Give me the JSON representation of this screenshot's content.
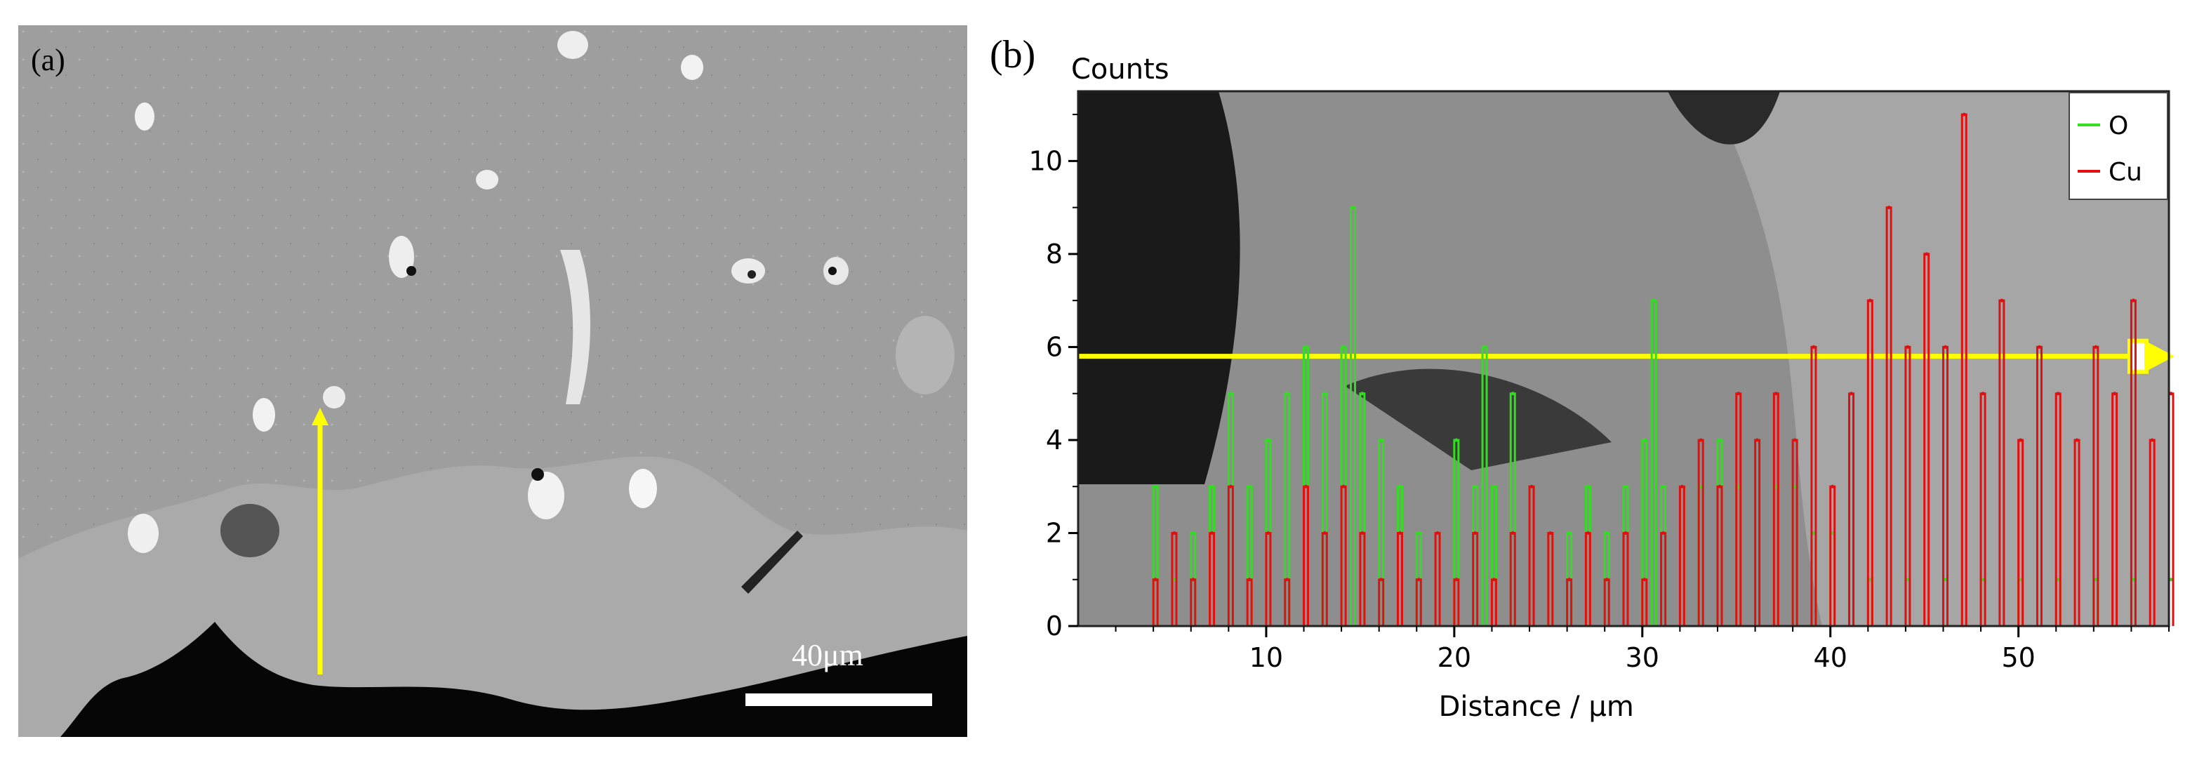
{
  "panel_a": {
    "label": "(a)",
    "scale_bar_label": "40μm",
    "colors": {
      "matrix": "#9e9e9e",
      "oxide_layer": "#a9a9a9",
      "void": "#050505",
      "arrow": "#ffff00",
      "scale_bar": "#ffffff"
    }
  },
  "panel_b": {
    "label": "(b)"
  },
  "chart_data": {
    "type": "line",
    "ylabel": "Counts",
    "xlabel": "Distance / μm",
    "xlim": [
      0,
      58
    ],
    "ylim": [
      0,
      11.5
    ],
    "x_ticks": [
      10,
      20,
      30,
      40,
      50
    ],
    "y_ticks": [
      0,
      2,
      4,
      6,
      8,
      10
    ],
    "legend_position": "top-right",
    "grid": false,
    "series": [
      {
        "name": "O",
        "color": "#33dd22",
        "x": [
          4,
          5,
          6,
          7,
          8,
          9,
          10,
          11,
          12,
          13,
          14,
          14.5,
          15,
          16,
          17,
          18,
          19,
          20,
          21,
          21.5,
          22,
          23,
          24,
          25,
          26,
          27,
          28,
          29,
          30,
          30.5,
          31,
          32,
          33,
          34,
          35,
          36,
          37,
          38,
          39,
          40,
          42,
          44,
          46,
          48,
          50,
          52,
          54,
          56,
          58
        ],
        "y": [
          3,
          1,
          2,
          3,
          5,
          3,
          4,
          5,
          6,
          5,
          6,
          9,
          5,
          4,
          3,
          2,
          2,
          4,
          3,
          6,
          3,
          5,
          3,
          2,
          2,
          3,
          2,
          3,
          4,
          7,
          3,
          3,
          3,
          4,
          3,
          4,
          3,
          3,
          2,
          2,
          1,
          1,
          1,
          1,
          1,
          1,
          1,
          1,
          1
        ]
      },
      {
        "name": "Cu",
        "color": "#e01010",
        "x": [
          4,
          5,
          6,
          7,
          8,
          9,
          10,
          11,
          12,
          13,
          14,
          15,
          16,
          17,
          18,
          19,
          20,
          21,
          22,
          23,
          24,
          25,
          26,
          27,
          28,
          29,
          30,
          31,
          32,
          33,
          34,
          35,
          36,
          37,
          38,
          39,
          40,
          41,
          42,
          43,
          44,
          45,
          46,
          47,
          48,
          49,
          50,
          51,
          52,
          53,
          54,
          55,
          56,
          57,
          58
        ],
        "y": [
          1,
          2,
          1,
          2,
          3,
          1,
          2,
          1,
          3,
          2,
          3,
          2,
          1,
          2,
          1,
          2,
          1,
          2,
          1,
          2,
          3,
          2,
          1,
          2,
          1,
          2,
          1,
          2,
          3,
          4,
          3,
          5,
          4,
          5,
          4,
          6,
          3,
          5,
          7,
          9,
          6,
          8,
          6,
          11,
          5,
          7,
          4,
          6,
          5,
          4,
          6,
          5,
          7,
          4,
          5
        ]
      }
    ]
  }
}
